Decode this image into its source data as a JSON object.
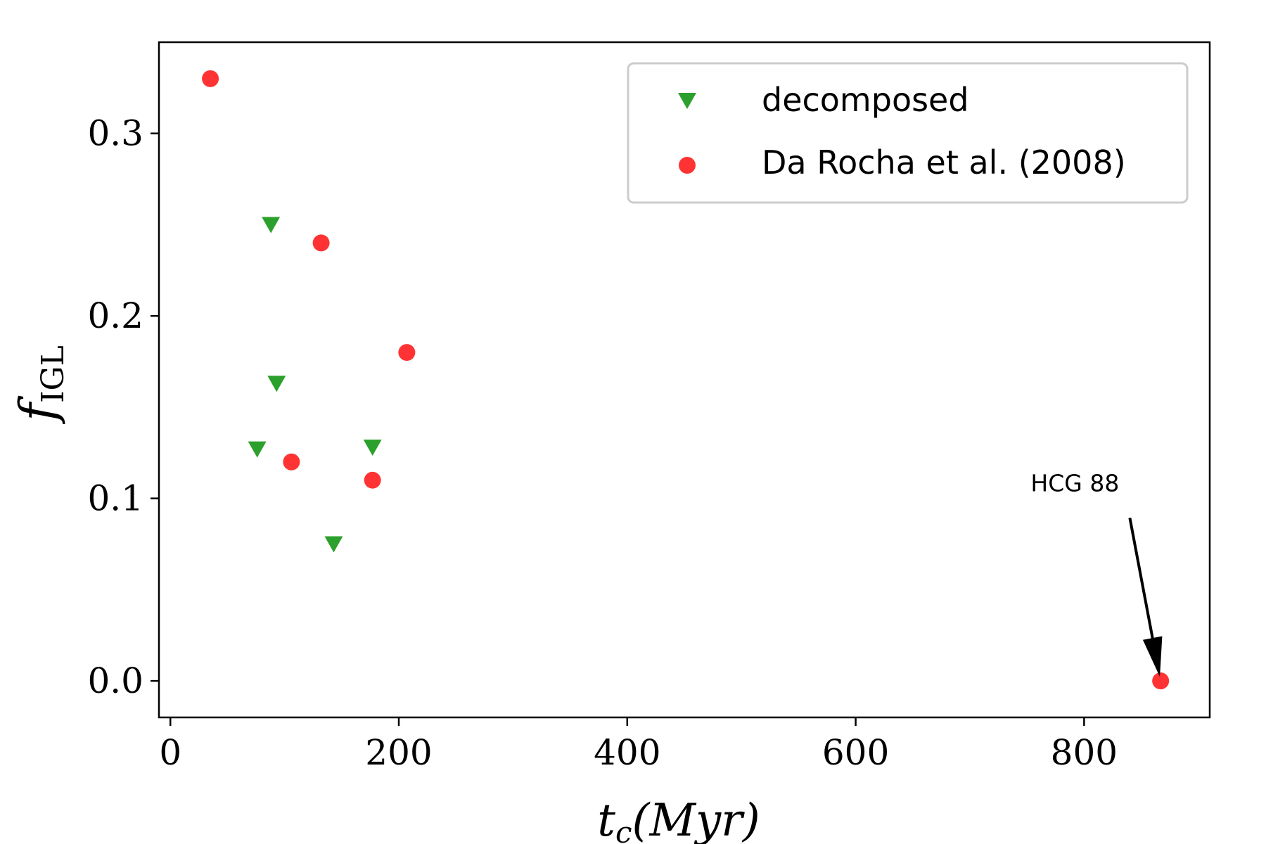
{
  "chart_data": {
    "type": "scatter",
    "xlabel_main": "t",
    "xlabel_sub": "c",
    "xlabel_rest": "(Myr)",
    "ylabel_main": "f",
    "ylabel_sub": "IGL",
    "xlim": [
      -10,
      910
    ],
    "ylim": [
      -0.02,
      0.35
    ],
    "xticks": [
      0,
      200,
      400,
      600,
      800
    ],
    "yticks": [
      0.0,
      0.1,
      0.2,
      0.3
    ],
    "xtick_labels": [
      "0",
      "200",
      "400",
      "600",
      "800"
    ],
    "ytick_labels": [
      "0.0",
      "0.1",
      "0.2",
      "0.3"
    ],
    "grid": false,
    "legend_position": "top-right",
    "series": [
      {
        "name": "decomposed",
        "marker": "triangle-down",
        "color": "#2ca02c",
        "points": [
          {
            "x": 88,
            "y": 0.25
          },
          {
            "x": 93,
            "y": 0.163
          },
          {
            "x": 76,
            "y": 0.127
          },
          {
            "x": 177,
            "y": 0.128
          },
          {
            "x": 143,
            "y": 0.075
          }
        ]
      },
      {
        "name": "Da Rocha et al. (2008)",
        "marker": "circle",
        "color": "#ff3333",
        "points": [
          {
            "x": 35,
            "y": 0.33
          },
          {
            "x": 132,
            "y": 0.24
          },
          {
            "x": 207,
            "y": 0.18
          },
          {
            "x": 106,
            "y": 0.12
          },
          {
            "x": 177,
            "y": 0.11
          },
          {
            "x": 867,
            "y": 0.0
          }
        ]
      }
    ],
    "annotations": [
      {
        "text": "HCG 88",
        "point": {
          "x": 867,
          "y": 0.0
        },
        "text_at": {
          "x": 792,
          "y": 0.104
        }
      }
    ]
  }
}
